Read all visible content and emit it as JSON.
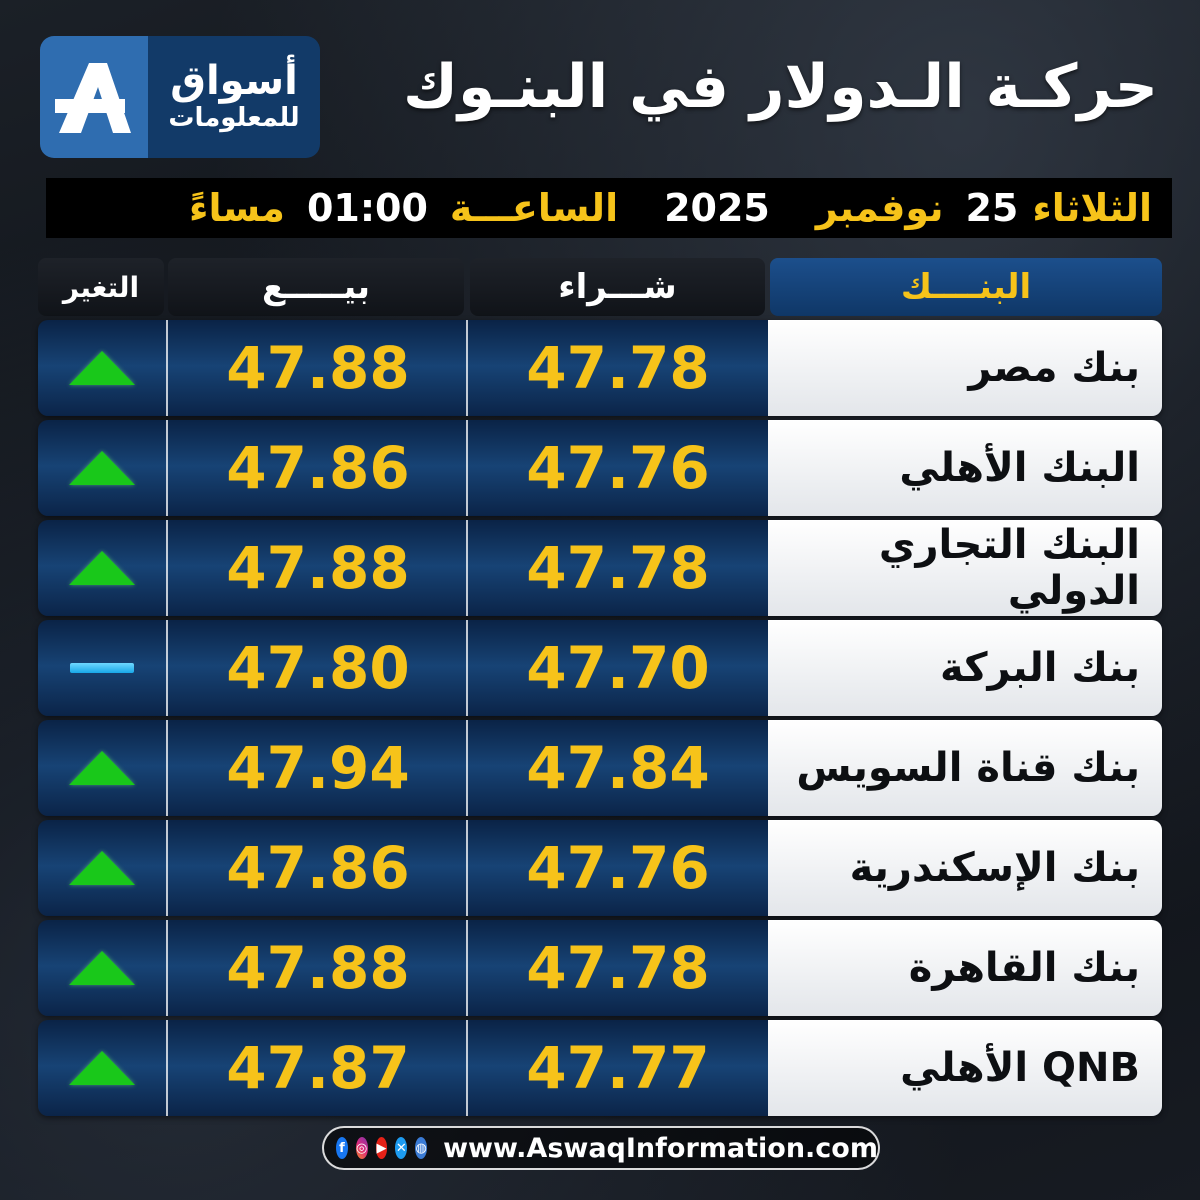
{
  "brand": {
    "line1": "أسواق",
    "line2": "للمعلومات",
    "mark": "A"
  },
  "title": "حركـة الـدولار في البنـوك",
  "date_bar": {
    "day": "الثلاثاء",
    "day_num": "25",
    "month": "نوفمبر",
    "year": "2025",
    "time_label": "الساعـــة",
    "time": "01:00",
    "period": "مساءً"
  },
  "table": {
    "headers": {
      "bank": "البنــــك",
      "buy": "شـــراء",
      "sell": "بيـــــع",
      "change": "التغير"
    },
    "rows": [
      {
        "bank": "بنك مصر",
        "buy": "47.78",
        "sell": "47.88",
        "change": "up"
      },
      {
        "bank": "البنك الأهلي",
        "buy": "47.76",
        "sell": "47.86",
        "change": "up"
      },
      {
        "bank": "البنك التجاري الدولي",
        "buy": "47.78",
        "sell": "47.88",
        "change": "up"
      },
      {
        "bank": "بنك البركة",
        "buy": "47.70",
        "sell": "47.80",
        "change": "unchanged"
      },
      {
        "bank": "بنك قناة السويس",
        "buy": "47.84",
        "sell": "47.94",
        "change": "up"
      },
      {
        "bank": "بنك الإسكندرية",
        "buy": "47.76",
        "sell": "47.86",
        "change": "up"
      },
      {
        "bank": "بنك القاهرة",
        "buy": "47.78",
        "sell": "47.88",
        "change": "up"
      },
      {
        "bank": "QNB الأهلي",
        "buy": "47.77",
        "sell": "47.87",
        "change": "up"
      }
    ]
  },
  "footer": {
    "social_icons": [
      "facebook-icon",
      "instagram-icon",
      "youtube-icon",
      "x-icon",
      "globe-icon"
    ],
    "url": "www.AswaqInformation.com"
  },
  "colors": {
    "gold": "#f6c31a",
    "up": "#19c81a",
    "unchanged": "#18a8e8",
    "navy": "#123a68"
  }
}
